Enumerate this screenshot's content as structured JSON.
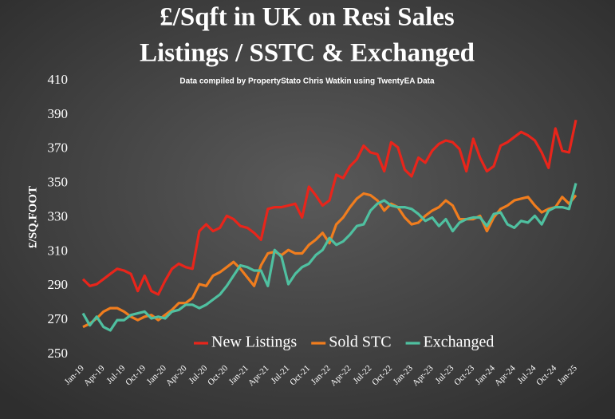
{
  "chart_data": {
    "type": "line",
    "title": [
      "£/Sqft in UK on Resi Sales",
      "Listings / SSTC & Exchanged"
    ],
    "subtitle": "Data compiled by PropertyStato Chris Watkin using TwentyEA Data",
    "y_label": "£/SQ.FOOT",
    "categories": [
      "Jan-19",
      null,
      null,
      "Apr-19",
      null,
      null,
      "Jul-19",
      null,
      null,
      "Oct-19",
      null,
      null,
      "Jan-20",
      null,
      null,
      "Apr-20",
      null,
      null,
      "Jul-20",
      null,
      null,
      "Oct-20",
      null,
      null,
      "Jan-21",
      null,
      null,
      "Apr-21",
      null,
      null,
      "Jul-21",
      null,
      null,
      "Oct-21",
      null,
      null,
      "Jan-22",
      null,
      null,
      "Apr-22",
      null,
      null,
      "Jul-22",
      null,
      null,
      "Oct-22",
      null,
      null,
      "Jan-23",
      null,
      null,
      "Apr-23",
      null,
      null,
      "Jul-23",
      null,
      null,
      "Oct-23",
      null,
      null,
      "Jan-24",
      null,
      null,
      "Apr-24",
      null,
      null,
      "Jul-24",
      null,
      null,
      "Oct-24",
      null,
      null,
      "Jan-25"
    ],
    "series": [
      {
        "name": "New Listings",
        "color": "#e8251b",
        "values": [
          294,
          290,
          291,
          294,
          297,
          300,
          299,
          297,
          287,
          296,
          287,
          285,
          293,
          300,
          303,
          301,
          300,
          322,
          326,
          322,
          324,
          331,
          329,
          325,
          324,
          321,
          317,
          335,
          336,
          336,
          337,
          338,
          330,
          348,
          343,
          337,
          340,
          355,
          353,
          360,
          364,
          372,
          368,
          367,
          357,
          374,
          371,
          358,
          354,
          365,
          362,
          369,
          373,
          375,
          374,
          370,
          357,
          376,
          365,
          357,
          360,
          372,
          374,
          377,
          380,
          378,
          375,
          368,
          359,
          382,
          369,
          368,
          387
        ]
      },
      {
        "name": "Sold STC",
        "color": "#f07d1e",
        "values": [
          266,
          268,
          271,
          275,
          277,
          277,
          275,
          272,
          270,
          272,
          273,
          270,
          273,
          276,
          280,
          280,
          283,
          291,
          290,
          296,
          298,
          301,
          304,
          300,
          295,
          290,
          302,
          309,
          310,
          308,
          311,
          309,
          309,
          314,
          317,
          321,
          315,
          326,
          330,
          336,
          341,
          344,
          343,
          340,
          334,
          338,
          336,
          330,
          326,
          327,
          331,
          334,
          336,
          340,
          337,
          329,
          329,
          329,
          331,
          322,
          330,
          335,
          337,
          340,
          341,
          342,
          337,
          333,
          335,
          336,
          342,
          338,
          343
        ]
      },
      {
        "name": "Exchanged",
        "color": "#4fc0a0",
        "values": [
          274,
          267,
          272,
          266,
          264,
          270,
          270,
          273,
          274,
          275,
          271,
          272,
          271,
          275,
          276,
          279,
          279,
          277,
          279,
          282,
          285,
          290,
          296,
          302,
          301,
          299,
          299,
          290,
          311,
          307,
          291,
          297,
          301,
          303,
          308,
          311,
          318,
          314,
          316,
          320,
          325,
          326,
          334,
          338,
          340,
          337,
          336,
          336,
          335,
          332,
          328,
          330,
          325,
          329,
          322,
          327,
          329,
          330,
          330,
          325,
          332,
          333,
          326,
          324,
          328,
          327,
          331,
          326,
          334,
          336,
          336,
          335,
          350
        ]
      }
    ],
    "ylim": [
      250,
      410
    ],
    "yticks": [
      250,
      270,
      290,
      310,
      330,
      350,
      370,
      390,
      410
    ],
    "grid": false,
    "legend": "bottom"
  }
}
